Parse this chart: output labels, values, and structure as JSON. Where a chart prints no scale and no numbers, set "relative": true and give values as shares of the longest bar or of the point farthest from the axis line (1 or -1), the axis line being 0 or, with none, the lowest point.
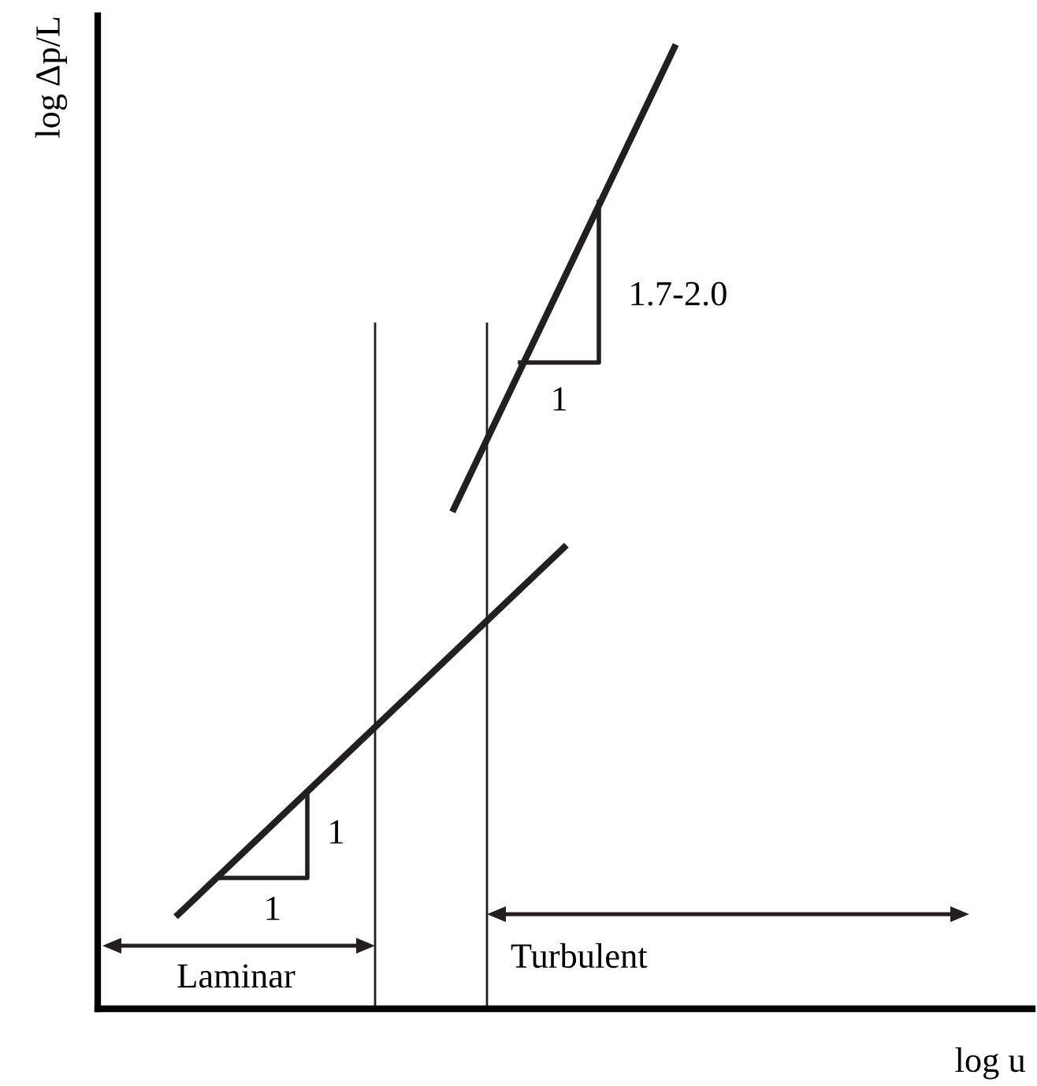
{
  "chart_data": {
    "type": "line",
    "relative": true,
    "ylabel": "log Δp/L",
    "categories": [
      null,
      null,
      null,
      null,
      null,
      null,
      null,
      null,
      null,
      null
    ],
    "series": [
      {
        "color": "#231f20",
        "values": [
          0.098,
          null,
          null,
          null,
          null,
          null,
          null,
          0.48,
          null,
          null
        ]
      },
      {
        "color": "#231f20",
        "values": [
          null,
          null,
          null,
          null,
          null,
          0.52,
          null,
          null,
          null,
          1.0
        ]
      }
    ],
    "annotations": [
      "1",
      "1",
      "1",
      "1.7-2.0",
      "Laminar",
      "Turbulent",
      "log u"
    ]
  }
}
